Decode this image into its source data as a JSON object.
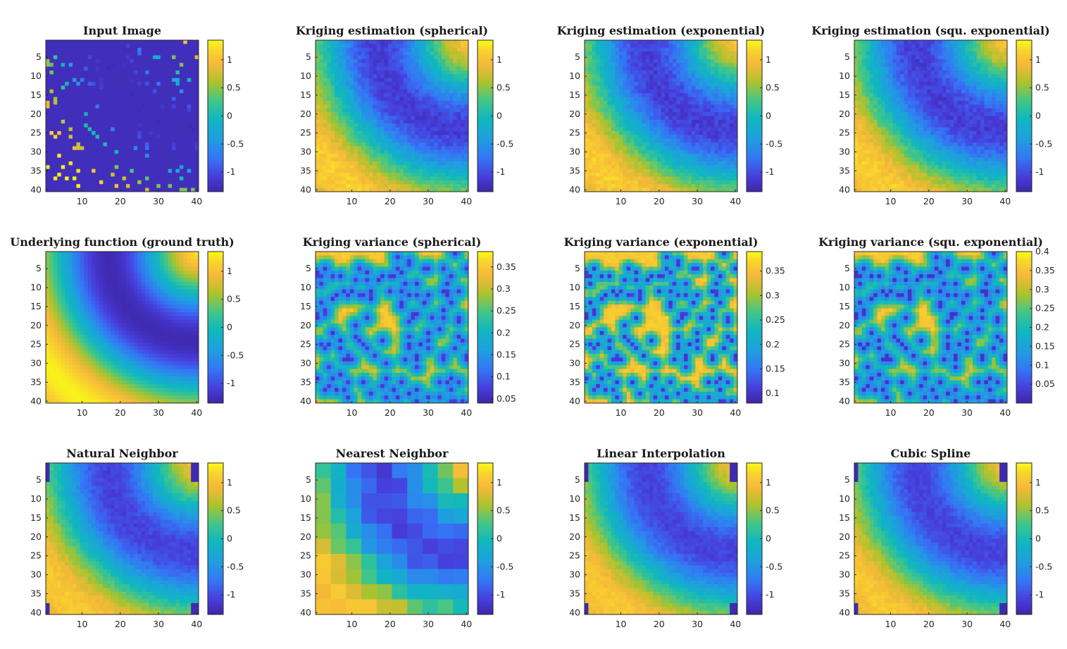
{
  "figure": {
    "background": "#ffffff",
    "colormap": "parula"
  },
  "chart_data": [
    {
      "type": "heatmap",
      "title": "Input Image",
      "field": "input",
      "grid": [
        40,
        40
      ],
      "x_ticks": [
        "10",
        "20",
        "30",
        "40"
      ],
      "y_ticks": [
        "5",
        "10",
        "15",
        "20",
        "25",
        "30",
        "35",
        "40"
      ],
      "clim": [
        -1.35,
        1.35
      ],
      "colorbar_ticks": [
        {
          "label": "1",
          "value": 1
        },
        {
          "label": "0.5",
          "value": 0.5
        },
        {
          "label": "0",
          "value": 0
        },
        {
          "label": "-0.5",
          "value": -0.5
        },
        {
          "label": "-1",
          "value": -1
        }
      ]
    },
    {
      "type": "heatmap",
      "title": "Kriging estimation (spherical)",
      "field": "estimate",
      "grid": [
        40,
        40
      ],
      "x_ticks": [
        "10",
        "20",
        "30",
        "40"
      ],
      "y_ticks": [
        "5",
        "10",
        "15",
        "20",
        "25",
        "30",
        "35",
        "40"
      ],
      "clim": [
        -1.35,
        1.35
      ],
      "colorbar_ticks": [
        {
          "label": "1",
          "value": 1
        },
        {
          "label": "0.5",
          "value": 0.5
        },
        {
          "label": "0",
          "value": 0
        },
        {
          "label": "-0.5",
          "value": -0.5
        },
        {
          "label": "-1",
          "value": -1
        }
      ]
    },
    {
      "type": "heatmap",
      "title": "Kriging estimation (exponential)",
      "field": "estimate",
      "grid": [
        40,
        40
      ],
      "x_ticks": [
        "10",
        "20",
        "30",
        "40"
      ],
      "y_ticks": [
        "5",
        "10",
        "15",
        "20",
        "25",
        "30",
        "35",
        "40"
      ],
      "clim": [
        -1.35,
        1.35
      ],
      "colorbar_ticks": [
        {
          "label": "1",
          "value": 1
        },
        {
          "label": "0.5",
          "value": 0.5
        },
        {
          "label": "0",
          "value": 0
        },
        {
          "label": "-0.5",
          "value": -0.5
        },
        {
          "label": "-1",
          "value": -1
        }
      ]
    },
    {
      "type": "heatmap",
      "title": "Kriging estimation (squ. exponential)",
      "field": "estimate",
      "grid": [
        40,
        40
      ],
      "x_ticks": [
        "10",
        "20",
        "30",
        "40"
      ],
      "y_ticks": [
        "5",
        "10",
        "15",
        "20",
        "25",
        "30",
        "35",
        "40"
      ],
      "clim": [
        -1.35,
        1.35
      ],
      "colorbar_ticks": [
        {
          "label": "1",
          "value": 1
        },
        {
          "label": "0.5",
          "value": 0.5
        },
        {
          "label": "0",
          "value": 0
        },
        {
          "label": "-0.5",
          "value": -0.5
        },
        {
          "label": "-1",
          "value": -1
        }
      ]
    },
    {
      "type": "heatmap",
      "title": "Underlying function (ground truth)",
      "field": "truth",
      "grid": [
        40,
        40
      ],
      "x_ticks": [
        "10",
        "20",
        "30",
        "40"
      ],
      "y_ticks": [
        "5",
        "10",
        "15",
        "20",
        "25",
        "30",
        "35",
        "40"
      ],
      "clim": [
        -1.35,
        1.35
      ],
      "colorbar_ticks": [
        {
          "label": "1",
          "value": 1
        },
        {
          "label": "0.5",
          "value": 0.5
        },
        {
          "label": "0",
          "value": 0
        },
        {
          "label": "-0.5",
          "value": -0.5
        },
        {
          "label": "-1",
          "value": -1
        }
      ]
    },
    {
      "type": "heatmap",
      "title": "Kriging variance (spherical)",
      "field": "variance",
      "grid": [
        40,
        40
      ],
      "x_ticks": [
        "10",
        "20",
        "30",
        "40"
      ],
      "y_ticks": [
        "5",
        "10",
        "15",
        "20",
        "25",
        "30",
        "35",
        "40"
      ],
      "clim": [
        0.04,
        0.385
      ],
      "colorbar_ticks": [
        {
          "label": "0.35",
          "value": 0.35
        },
        {
          "label": "0.3",
          "value": 0.3
        },
        {
          "label": "0.25",
          "value": 0.25
        },
        {
          "label": "0.2",
          "value": 0.2
        },
        {
          "label": "0.15",
          "value": 0.15
        },
        {
          "label": "0.1",
          "value": 0.1
        },
        {
          "label": "0.05",
          "value": 0.05
        }
      ]
    },
    {
      "type": "heatmap",
      "title": "Kriging variance (exponential)",
      "field": "variance",
      "grid": [
        40,
        40
      ],
      "x_ticks": [
        "10",
        "20",
        "30",
        "40"
      ],
      "y_ticks": [
        "5",
        "10",
        "15",
        "20",
        "25",
        "30",
        "35",
        "40"
      ],
      "clim": [
        0.08,
        0.39
      ],
      "colorbar_ticks": [
        {
          "label": "0.35",
          "value": 0.35
        },
        {
          "label": "0.3",
          "value": 0.3
        },
        {
          "label": "0.25",
          "value": 0.25
        },
        {
          "label": "0.2",
          "value": 0.2
        },
        {
          "label": "0.15",
          "value": 0.15
        },
        {
          "label": "0.1",
          "value": 0.1
        }
      ]
    },
    {
      "type": "heatmap",
      "title": "Kriging variance (squ. exponential)",
      "field": "variance",
      "grid": [
        40,
        40
      ],
      "x_ticks": [
        "10",
        "20",
        "30",
        "40"
      ],
      "y_ticks": [
        "5",
        "10",
        "15",
        "20",
        "25",
        "30",
        "35",
        "40"
      ],
      "clim": [
        0.0,
        0.4
      ],
      "colorbar_ticks": [
        {
          "label": "0.4",
          "value": 0.4
        },
        {
          "label": "0.35",
          "value": 0.35
        },
        {
          "label": "0.3",
          "value": 0.3
        },
        {
          "label": "0.25",
          "value": 0.25
        },
        {
          "label": "0.2",
          "value": 0.2
        },
        {
          "label": "0.15",
          "value": 0.15
        },
        {
          "label": "0.1",
          "value": 0.1
        },
        {
          "label": "0.05",
          "value": 0.05
        }
      ]
    },
    {
      "type": "heatmap",
      "title": "Natural Neighbor",
      "field": "interp",
      "grid": [
        40,
        40
      ],
      "x_ticks": [
        "10",
        "20",
        "30",
        "40"
      ],
      "y_ticks": [
        "5",
        "10",
        "15",
        "20",
        "25",
        "30",
        "35",
        "40"
      ],
      "clim": [
        -1.35,
        1.35
      ],
      "colorbar_ticks": [
        {
          "label": "1",
          "value": 1
        },
        {
          "label": "0.5",
          "value": 0.5
        },
        {
          "label": "0",
          "value": 0
        },
        {
          "label": "-0.5",
          "value": -0.5
        },
        {
          "label": "-1",
          "value": -1
        }
      ]
    },
    {
      "type": "heatmap",
      "title": "Nearest Neighbor",
      "field": "nearest",
      "grid": [
        40,
        40
      ],
      "x_ticks": [
        "10",
        "20",
        "30",
        "40"
      ],
      "y_ticks": [
        "5",
        "10",
        "15",
        "20",
        "25",
        "30",
        "35",
        "40"
      ],
      "clim": [
        -1.35,
        1.35
      ],
      "colorbar_ticks": [
        {
          "label": "1",
          "value": 1
        },
        {
          "label": "0.5",
          "value": 0.5
        },
        {
          "label": "0",
          "value": 0
        },
        {
          "label": "-0.5",
          "value": -0.5
        },
        {
          "label": "-1",
          "value": -1
        }
      ]
    },
    {
      "type": "heatmap",
      "title": "Linear Interpolation",
      "field": "interp",
      "grid": [
        40,
        40
      ],
      "x_ticks": [
        "10",
        "20",
        "30",
        "40"
      ],
      "y_ticks": [
        "5",
        "10",
        "15",
        "20",
        "25",
        "30",
        "35",
        "40"
      ],
      "clim": [
        -1.35,
        1.35
      ],
      "colorbar_ticks": [
        {
          "label": "1",
          "value": 1
        },
        {
          "label": "0.5",
          "value": 0.5
        },
        {
          "label": "0",
          "value": 0
        },
        {
          "label": "-0.5",
          "value": -0.5
        },
        {
          "label": "-1",
          "value": -1
        }
      ]
    },
    {
      "type": "heatmap",
      "title": "Cubic Spline",
      "field": "interp",
      "grid": [
        40,
        40
      ],
      "x_ticks": [
        "10",
        "20",
        "30",
        "40"
      ],
      "y_ticks": [
        "5",
        "10",
        "15",
        "20",
        "25",
        "30",
        "35",
        "40"
      ],
      "clim": [
        -1.35,
        1.35
      ],
      "colorbar_ticks": [
        {
          "label": "1",
          "value": 1
        },
        {
          "label": "0.5",
          "value": 0.5
        },
        {
          "label": "0",
          "value": 0
        },
        {
          "label": "-0.5",
          "value": -0.5
        },
        {
          "label": "-1",
          "value": -1
        }
      ]
    }
  ]
}
